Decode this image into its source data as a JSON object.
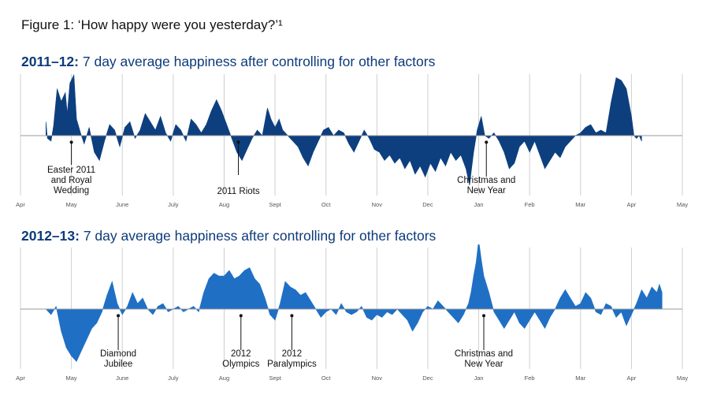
{
  "figure_title": "Figure 1:  ‘How happy were you yesterday?’¹",
  "chart_data": [
    {
      "type": "area",
      "title_year": "2011–12:",
      "title_rest": " 7 day average happiness after controlling for other factors",
      "months": [
        "Apr",
        "May",
        "June",
        "July",
        "Aug",
        "Sept",
        "Oct",
        "Nov",
        "Dec",
        "Jan",
        "Feb",
        "Mar",
        "Apr",
        "May"
      ],
      "color": "#0d3f7f",
      "points": [
        [
          0.5,
          0.25
        ],
        [
          0.53,
          -0.05
        ],
        [
          0.6,
          -0.1
        ],
        [
          0.65,
          0.18
        ],
        [
          0.72,
          0.85
        ],
        [
          0.8,
          0.62
        ],
        [
          0.88,
          0.78
        ],
        [
          0.92,
          0.4
        ],
        [
          0.97,
          0.95
        ],
        [
          1.05,
          1.1
        ],
        [
          1.1,
          0.3
        ],
        [
          1.18,
          0.05
        ],
        [
          1.25,
          -0.15
        ],
        [
          1.35,
          0.15
        ],
        [
          1.45,
          -0.3
        ],
        [
          1.55,
          -0.45
        ],
        [
          1.65,
          -0.1
        ],
        [
          1.75,
          0.2
        ],
        [
          1.85,
          0.1
        ],
        [
          1.95,
          -0.2
        ],
        [
          2.05,
          0.15
        ],
        [
          2.15,
          0.25
        ],
        [
          2.25,
          -0.05
        ],
        [
          2.35,
          0.1
        ],
        [
          2.45,
          0.4
        ],
        [
          2.55,
          0.25
        ],
        [
          2.65,
          0.1
        ],
        [
          2.75,
          0.35
        ],
        [
          2.85,
          0.05
        ],
        [
          2.95,
          -0.1
        ],
        [
          3.05,
          0.2
        ],
        [
          3.15,
          0.1
        ],
        [
          3.25,
          -0.1
        ],
        [
          3.35,
          0.3
        ],
        [
          3.45,
          0.2
        ],
        [
          3.55,
          0.05
        ],
        [
          3.65,
          0.2
        ],
        [
          3.75,
          0.45
        ],
        [
          3.85,
          0.65
        ],
        [
          3.95,
          0.45
        ],
        [
          4.05,
          0.2
        ],
        [
          4.15,
          -0.05
        ],
        [
          4.25,
          -0.3
        ],
        [
          4.35,
          -0.45
        ],
        [
          4.45,
          -0.25
        ],
        [
          4.55,
          -0.05
        ],
        [
          4.65,
          0.1
        ],
        [
          4.75,
          0.0
        ],
        [
          4.85,
          0.5
        ],
        [
          4.92,
          0.3
        ],
        [
          5.0,
          0.15
        ],
        [
          5.08,
          0.3
        ],
        [
          5.15,
          0.1
        ],
        [
          5.25,
          0.0
        ],
        [
          5.35,
          -0.1
        ],
        [
          5.45,
          -0.2
        ],
        [
          5.55,
          -0.4
        ],
        [
          5.65,
          -0.55
        ],
        [
          5.75,
          -0.3
        ],
        [
          5.85,
          -0.1
        ],
        [
          5.95,
          0.1
        ],
        [
          6.05,
          0.15
        ],
        [
          6.15,
          0.0
        ],
        [
          6.25,
          0.1
        ],
        [
          6.35,
          0.05
        ],
        [
          6.45,
          -0.15
        ],
        [
          6.55,
          -0.3
        ],
        [
          6.65,
          -0.1
        ],
        [
          6.75,
          0.1
        ],
        [
          6.85,
          -0.05
        ],
        [
          6.95,
          -0.25
        ],
        [
          7.05,
          -0.3
        ],
        [
          7.15,
          -0.45
        ],
        [
          7.25,
          -0.35
        ],
        [
          7.35,
          -0.5
        ],
        [
          7.45,
          -0.4
        ],
        [
          7.55,
          -0.6
        ],
        [
          7.65,
          -0.45
        ],
        [
          7.75,
          -0.7
        ],
        [
          7.85,
          -0.55
        ],
        [
          7.95,
          -0.75
        ],
        [
          8.05,
          -0.5
        ],
        [
          8.15,
          -0.65
        ],
        [
          8.25,
          -0.4
        ],
        [
          8.35,
          -0.55
        ],
        [
          8.45,
          -0.3
        ],
        [
          8.55,
          -0.45
        ],
        [
          8.65,
          -0.35
        ],
        [
          8.75,
          -0.6
        ],
        [
          8.82,
          -0.9
        ],
        [
          8.9,
          -0.3
        ],
        [
          8.97,
          0.1
        ],
        [
          9.05,
          0.35
        ],
        [
          9.12,
          0.0
        ],
        [
          9.2,
          -0.05
        ],
        [
          9.3,
          0.05
        ],
        [
          9.4,
          -0.1
        ],
        [
          9.5,
          -0.3
        ],
        [
          9.6,
          -0.6
        ],
        [
          9.7,
          -0.5
        ],
        [
          9.8,
          -0.2
        ],
        [
          9.9,
          -0.1
        ],
        [
          10.0,
          -0.3
        ],
        [
          10.1,
          -0.1
        ],
        [
          10.2,
          -0.35
        ],
        [
          10.3,
          -0.6
        ],
        [
          10.4,
          -0.45
        ],
        [
          10.5,
          -0.3
        ],
        [
          10.6,
          -0.4
        ],
        [
          10.7,
          -0.2
        ],
        [
          10.8,
          -0.1
        ],
        [
          10.9,
          0.0
        ],
        [
          11.0,
          0.05
        ],
        [
          11.1,
          0.15
        ],
        [
          11.2,
          0.2
        ],
        [
          11.3,
          0.05
        ],
        [
          11.4,
          0.1
        ],
        [
          11.5,
          0.05
        ],
        [
          11.6,
          0.6
        ],
        [
          11.7,
          1.05
        ],
        [
          11.8,
          1.0
        ],
        [
          11.9,
          0.85
        ],
        [
          12.0,
          0.35
        ],
        [
          12.05,
          0.0
        ],
        [
          12.1,
          -0.05
        ],
        [
          12.15,
          0.0
        ],
        [
          12.2,
          -0.1
        ]
      ],
      "annotations": [
        {
          "month_pos": 1.0,
          "value": -0.12,
          "label_lines": [
            "Easter 2011",
            "and Royal",
            "Wedding"
          ],
          "line_to": "down",
          "label_x_offset": 0
        },
        {
          "month_pos": 4.28,
          "value": -0.12,
          "label_lines": [
            "2011 Riots"
          ],
          "line_to": "down",
          "label_x_offset": 0
        },
        {
          "month_pos": 9.15,
          "value": -0.12,
          "label_lines": [
            "Christmas and",
            "New Year"
          ],
          "line_to": "down",
          "label_x_offset": 0
        }
      ]
    },
    {
      "type": "area",
      "title_year": "2012–13:",
      "title_rest": " 7 day average happiness after controlling for other factors",
      "months": [
        "Apr",
        "May",
        "June",
        "July",
        "Aug",
        "Sept",
        "Oct",
        "Nov",
        "Dec",
        "Jan",
        "Feb",
        "Mar",
        "Apr",
        "May"
      ],
      "color": "#1f6fc5",
      "points": [
        [
          0.5,
          0.0
        ],
        [
          0.6,
          -0.1
        ],
        [
          0.7,
          0.05
        ],
        [
          0.8,
          -0.4
        ],
        [
          0.9,
          -0.7
        ],
        [
          1.0,
          -0.85
        ],
        [
          1.1,
          -0.95
        ],
        [
          1.2,
          -0.75
        ],
        [
          1.3,
          -0.55
        ],
        [
          1.4,
          -0.35
        ],
        [
          1.5,
          -0.25
        ],
        [
          1.6,
          -0.05
        ],
        [
          1.7,
          0.25
        ],
        [
          1.8,
          0.5
        ],
        [
          1.85,
          0.3
        ],
        [
          1.9,
          0.1
        ],
        [
          2.0,
          -0.1
        ],
        [
          2.1,
          0.05
        ],
        [
          2.2,
          0.3
        ],
        [
          2.3,
          0.1
        ],
        [
          2.4,
          0.2
        ],
        [
          2.5,
          0.0
        ],
        [
          2.6,
          -0.1
        ],
        [
          2.7,
          0.05
        ],
        [
          2.8,
          0.1
        ],
        [
          2.9,
          -0.05
        ],
        [
          3.0,
          0.0
        ],
        [
          3.1,
          0.05
        ],
        [
          3.2,
          -0.05
        ],
        [
          3.3,
          0.0
        ],
        [
          3.4,
          0.05
        ],
        [
          3.5,
          -0.05
        ],
        [
          3.6,
          0.3
        ],
        [
          3.7,
          0.55
        ],
        [
          3.8,
          0.65
        ],
        [
          3.9,
          0.6
        ],
        [
          4.0,
          0.6
        ],
        [
          4.1,
          0.7
        ],
        [
          4.2,
          0.55
        ],
        [
          4.3,
          0.6
        ],
        [
          4.4,
          0.7
        ],
        [
          4.5,
          0.75
        ],
        [
          4.6,
          0.55
        ],
        [
          4.7,
          0.45
        ],
        [
          4.8,
          0.2
        ],
        [
          4.9,
          -0.1
        ],
        [
          5.0,
          -0.2
        ],
        [
          5.1,
          0.1
        ],
        [
          5.2,
          0.5
        ],
        [
          5.3,
          0.4
        ],
        [
          5.4,
          0.35
        ],
        [
          5.5,
          0.25
        ],
        [
          5.6,
          0.3
        ],
        [
          5.7,
          0.15
        ],
        [
          5.8,
          0.0
        ],
        [
          5.9,
          -0.15
        ],
        [
          6.0,
          -0.05
        ],
        [
          6.1,
          0.0
        ],
        [
          6.2,
          -0.1
        ],
        [
          6.3,
          0.1
        ],
        [
          6.4,
          -0.05
        ],
        [
          6.5,
          -0.1
        ],
        [
          6.6,
          -0.05
        ],
        [
          6.7,
          0.05
        ],
        [
          6.8,
          -0.15
        ],
        [
          6.9,
          -0.2
        ],
        [
          7.0,
          -0.1
        ],
        [
          7.1,
          -0.15
        ],
        [
          7.2,
          -0.05
        ],
        [
          7.3,
          -0.1
        ],
        [
          7.4,
          0.0
        ],
        [
          7.5,
          -0.1
        ],
        [
          7.6,
          -0.2
        ],
        [
          7.7,
          -0.4
        ],
        [
          7.8,
          -0.25
        ],
        [
          7.9,
          -0.05
        ],
        [
          8.0,
          0.05
        ],
        [
          8.1,
          0.0
        ],
        [
          8.2,
          0.15
        ],
        [
          8.3,
          0.05
        ],
        [
          8.4,
          -0.05
        ],
        [
          8.5,
          -0.15
        ],
        [
          8.6,
          -0.25
        ],
        [
          8.7,
          -0.1
        ],
        [
          8.8,
          0.1
        ],
        [
          8.85,
          0.3
        ],
        [
          8.9,
          0.6
        ],
        [
          8.95,
          0.85
        ],
        [
          9.0,
          1.25
        ],
        [
          9.05,
          0.9
        ],
        [
          9.1,
          0.6
        ],
        [
          9.2,
          0.3
        ],
        [
          9.3,
          -0.05
        ],
        [
          9.4,
          -0.2
        ],
        [
          9.5,
          -0.35
        ],
        [
          9.6,
          -0.2
        ],
        [
          9.7,
          -0.05
        ],
        [
          9.8,
          -0.25
        ],
        [
          9.9,
          -0.35
        ],
        [
          10.0,
          -0.2
        ],
        [
          10.1,
          -0.05
        ],
        [
          10.2,
          -0.2
        ],
        [
          10.3,
          -0.35
        ],
        [
          10.4,
          -0.15
        ],
        [
          10.5,
          0.0
        ],
        [
          10.6,
          0.2
        ],
        [
          10.7,
          0.35
        ],
        [
          10.8,
          0.2
        ],
        [
          10.9,
          0.05
        ],
        [
          11.0,
          0.1
        ],
        [
          11.1,
          0.3
        ],
        [
          11.2,
          0.2
        ],
        [
          11.3,
          -0.05
        ],
        [
          11.4,
          -0.1
        ],
        [
          11.5,
          0.1
        ],
        [
          11.6,
          0.05
        ],
        [
          11.7,
          -0.15
        ],
        [
          11.8,
          -0.05
        ],
        [
          11.9,
          -0.3
        ],
        [
          12.0,
          -0.1
        ],
        [
          12.1,
          0.1
        ],
        [
          12.2,
          0.35
        ],
        [
          12.3,
          0.2
        ],
        [
          12.4,
          0.4
        ],
        [
          12.5,
          0.3
        ],
        [
          12.55,
          0.45
        ],
        [
          12.6,
          0.3
        ]
      ],
      "annotations": [
        {
          "month_pos": 1.92,
          "value": -0.12,
          "label_lines": [
            "Diamond",
            "Jubilee"
          ],
          "line_to": "down",
          "label_x_offset": 0
        },
        {
          "month_pos": 4.33,
          "value": -0.12,
          "label_lines": [
            "2012",
            "Olympics"
          ],
          "line_to": "down",
          "label_x_offset": 0
        },
        {
          "month_pos": 5.33,
          "value": -0.12,
          "label_lines": [
            "2012",
            "Paralympics"
          ],
          "line_to": "down",
          "label_x_offset": 0
        },
        {
          "month_pos": 9.1,
          "value": -0.12,
          "label_lines": [
            "Christmas and",
            "New Year"
          ],
          "line_to": "down",
          "label_x_offset": 0
        }
      ]
    }
  ]
}
